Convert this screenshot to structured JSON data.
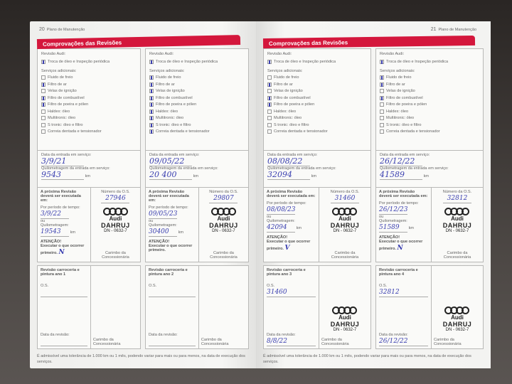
{
  "labels": {
    "revisao_audi": "Revisão Audi:",
    "troca": "Troca de óleo e Inspeção periódica",
    "servicos_adicionais": "Serviços adicionais:",
    "services": [
      "Fluido de freio",
      "Filtro de ar",
      "Velas de ignição",
      "Filtro de combustível",
      "Filtro de poeira e pólen",
      "Haldex: óleo",
      "Multitronic: óleo",
      "S tronic: óleo e filtro",
      "Correia dentada e tensionador"
    ],
    "data_entrada": "Data da entrada em serviço:",
    "km_entrada": "Quilometragem da entrada em serviço:",
    "km": "km",
    "proxima": "A próxima Revisão deverá ser executada em:",
    "periodo": "Por período de tempo:",
    "ou": "ou",
    "quilometragem": "Quilometragem:",
    "atencao": "ATENÇÃO!",
    "executar": "Executar o que ocorrer primeiro.",
    "numero_os": "Número da O.S.",
    "carimbo": "Carimbo da Concessionária",
    "os": "O.S.",
    "data_revisao": "Data da revisão:"
  },
  "stamp": {
    "brand": "Audi",
    "dealer": "DAHRUJ",
    "code": "DN - 0632-7"
  },
  "pages": [
    {
      "page_number": "20",
      "running_header": "Plano de Manutenção",
      "section_title": "Comprovações das Revisões",
      "footnote": "É admissível uma tolerância de 1.000 km ou 1 mês, podendo variar para mais ou para menos, na data de execução dos serviços.",
      "cards": [
        {
          "troca": true,
          "services": [
            false,
            true,
            false,
            true,
            true,
            false,
            false,
            false,
            false
          ],
          "date": "3/9/21",
          "km": "9543",
          "os_number": "27946",
          "next_date": "3/9/22",
          "next_km": "19543",
          "initials": "N",
          "stamped": true,
          "body": {
            "title": "Revisão carroceria e pintura ano 1",
            "os": "",
            "date": "",
            "stamped": false
          }
        },
        {
          "troca": true,
          "services": [
            true,
            true,
            true,
            true,
            true,
            true,
            true,
            true,
            true
          ],
          "date": "09/05/22",
          "km": "20 400",
          "os_number": "29807",
          "next_date": "09/05/23",
          "next_km": "30400",
          "initials": "",
          "stamped": true,
          "body": {
            "title": "Revisão carroceria e pintura ano 2",
            "os": "",
            "date": "",
            "stamped": false
          }
        }
      ]
    },
    {
      "page_number": "21",
      "running_header": "Plano de Manutenção",
      "section_title": "Comprovações das Revisões",
      "footnote": "É admissível uma tolerância de 1.000 km ou 1 mês, podendo variar para mais ou para menos, na data de execução dos serviços.",
      "cards": [
        {
          "troca": true,
          "services": [
            false,
            true,
            false,
            true,
            true,
            false,
            false,
            false,
            false
          ],
          "date": "08/08/22",
          "km": "32094",
          "os_number": "31460",
          "next_date": "08/08/23",
          "next_km": "42094",
          "initials": "V",
          "stamped": true,
          "body": {
            "title": "Revisão carroceria e pintura ano 3",
            "os": "31460",
            "date": "8/8/22",
            "stamped": true
          }
        },
        {
          "troca": true,
          "services": [
            true,
            true,
            false,
            true,
            false,
            false,
            false,
            false,
            false
          ],
          "date": "26/12/22",
          "km": "41589",
          "os_number": "32812",
          "next_date": "26/12/23",
          "next_km": "51589",
          "initials": "N",
          "stamped": true,
          "body": {
            "title": "Revisão carroceria e pintura ano 4",
            "os": "32812",
            "date": "26/12/22",
            "stamped": true
          }
        }
      ]
    }
  ]
}
